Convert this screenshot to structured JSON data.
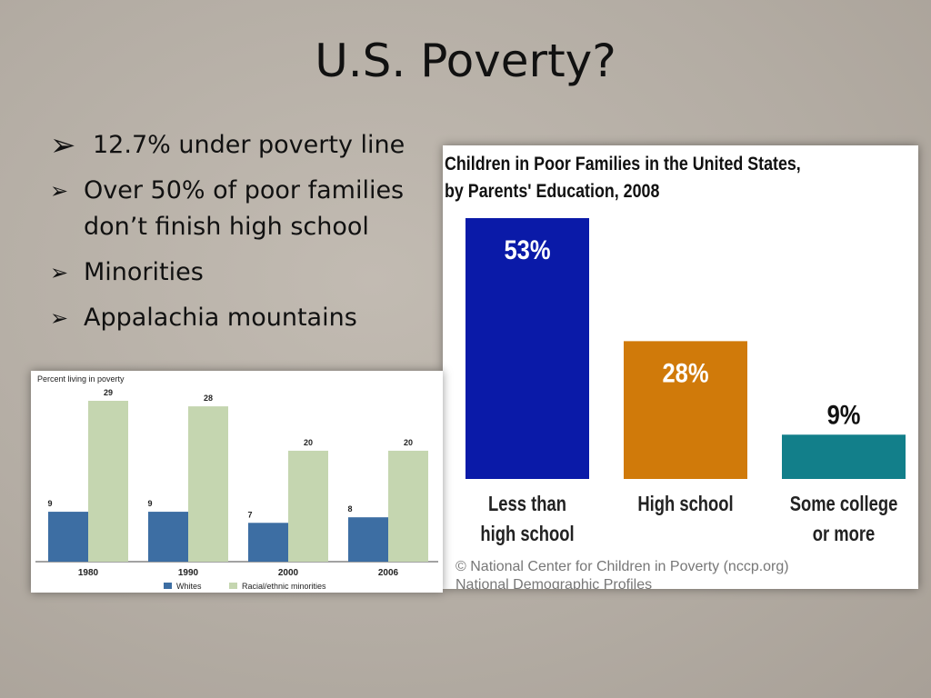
{
  "slide": {
    "title": "U.S. Poverty?",
    "bullets": [
      "12.7% under poverty line",
      "Over 50% of poor families don’t finish high school",
      "Minorities",
      "Appalachia mountains"
    ]
  },
  "chart_data": [
    {
      "type": "bar",
      "title": "Children in Poor Families in the United States, by Parents' Education, 2008",
      "categories": [
        "Less than high school",
        "High school",
        "Some college or more"
      ],
      "values": [
        53,
        28,
        9
      ],
      "value_labels": [
        "53%",
        "28%",
        "9%"
      ],
      "colors": [
        "#0a1aa8",
        "#d07a0a",
        "#127f8a"
      ],
      "source": [
        "© National Center for Children in Poverty (nccp.org)",
        "National Demographic Profiles"
      ]
    },
    {
      "type": "grouped-bar",
      "y_label": "Percent living in poverty",
      "categories": [
        "1980",
        "1990",
        "2000",
        "2006"
      ],
      "series": [
        {
          "name": "Whites",
          "color": "#3d6ea3",
          "values": [
            9,
            9,
            7,
            8
          ]
        },
        {
          "name": "Racial/ethnic minorities",
          "color": "#c5d6b0",
          "values": [
            29,
            28,
            20,
            20
          ]
        }
      ]
    }
  ]
}
